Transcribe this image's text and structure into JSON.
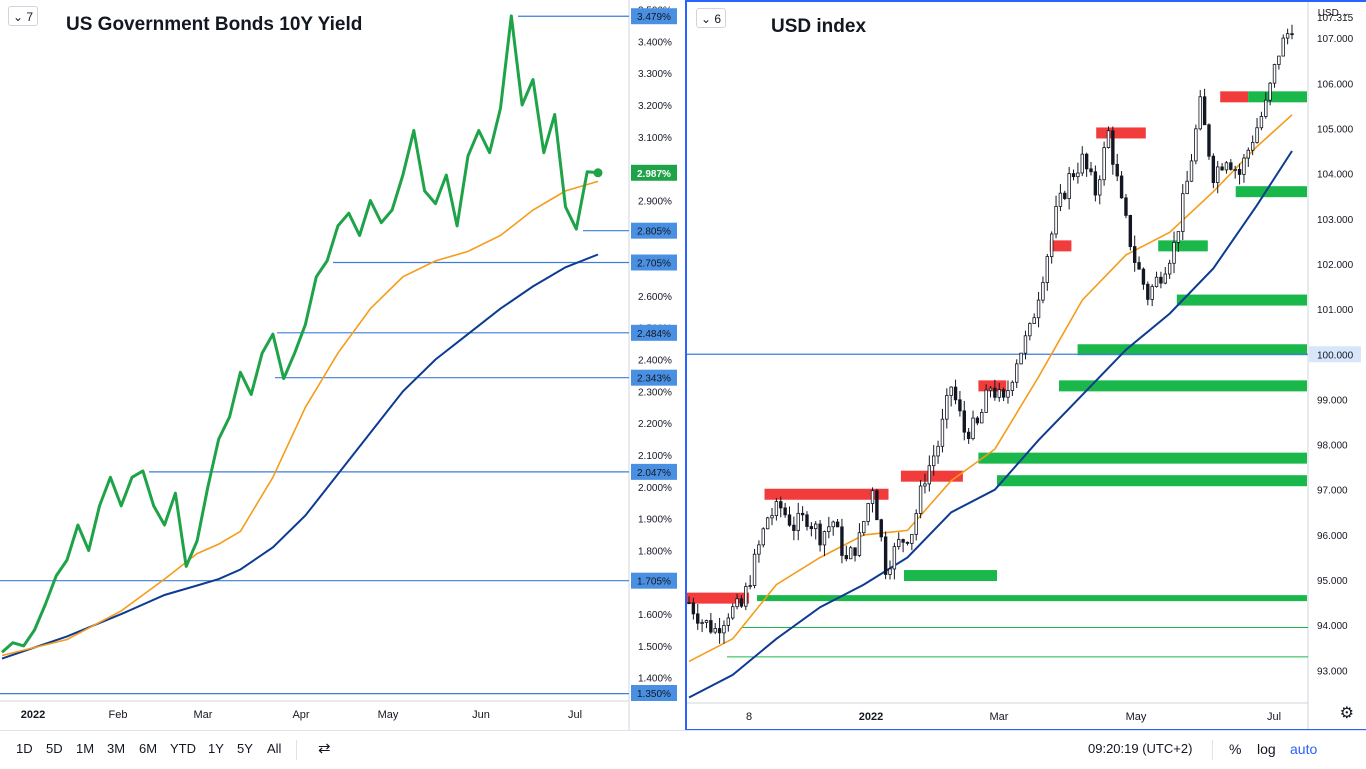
{
  "left_panel": {
    "badge": "7",
    "title": "US Government Bonds 10Y Yield",
    "price_axis_labels": [
      "3.500%",
      "3.400%",
      "3.300%",
      "3.200%",
      "3.100%",
      "2.900%",
      "2.700%",
      "2.600%",
      "2.500%",
      "2.400%",
      "2.300%",
      "2.200%",
      "2.100%",
      "2.000%",
      "1.900%",
      "1.800%",
      "1.600%",
      "1.500%",
      "1.400%",
      "1.350%"
    ],
    "level_tags": [
      "3.479%",
      "2.805%",
      "2.705%",
      "2.484%",
      "2.343%",
      "2.047%",
      "1.705%",
      "1.350%"
    ],
    "last_price": "2.987%",
    "time_labels": [
      "2022",
      "Feb",
      "Mar",
      "Apr",
      "May",
      "Jun",
      "Jul"
    ]
  },
  "right_panel": {
    "badge": "6",
    "title": "USD index",
    "currency": "USD",
    "price_axis_labels": [
      "107.315",
      "107.000",
      "106.000",
      "105.000",
      "104.000",
      "103.000",
      "102.000",
      "101.000",
      "100.000",
      "99.000",
      "98.000",
      "97.000",
      "96.000",
      "95.000",
      "94.000",
      "93.000"
    ],
    "level_tag": "100.000",
    "time_labels": [
      "8",
      "2022",
      "Mar",
      "May",
      "Jul"
    ]
  },
  "bottom_bar": {
    "timeframes": [
      "1D",
      "5D",
      "1M",
      "3M",
      "6M",
      "YTD",
      "1Y",
      "5Y",
      "All"
    ],
    "clock": "09:20:19 (UTC+2)",
    "percent": "%",
    "log": "log",
    "auto": "auto"
  },
  "colors": {
    "price_line": "#1fa349",
    "ma_fast": "#f59c1a",
    "ma_slow": "#0d3b94",
    "level_line": "#3d7fd6",
    "level_tag_bg": "#4a90e2",
    "resistance": "#f23b3b",
    "support": "#1ab84a",
    "frame": "#2962ff"
  },
  "chart_data": [
    {
      "type": "line",
      "title": "US Government Bonds 10Y Yield",
      "x_labels": [
        "2022",
        "Feb",
        "Mar",
        "Apr",
        "May",
        "Jun",
        "Jul"
      ],
      "ylim": [
        1.33,
        3.53
      ],
      "series": [
        {
          "values": [
            1.48,
            1.51,
            1.5,
            1.55,
            1.63,
            1.72,
            1.77,
            1.88,
            1.8,
            1.94,
            2.03,
            1.94,
            2.03,
            2.05,
            1.94,
            1.88,
            1.98,
            1.75,
            1.83,
            2.0,
            2.15,
            2.22,
            2.36,
            2.29,
            2.42,
            2.48,
            2.34,
            2.42,
            2.51,
            2.66,
            2.71,
            2.82,
            2.86,
            2.79,
            2.9,
            2.83,
            2.87,
            2.98,
            3.12,
            2.93,
            2.89,
            2.98,
            2.82,
            3.04,
            3.12,
            3.05,
            3.19,
            3.48,
            3.2,
            3.28,
            3.05,
            3.17,
            2.88,
            2.81,
            2.99,
            2.987
          ]
        }
      ],
      "x_range": [
        0,
        55
      ],
      "ma_fast": [
        [
          0,
          1.47
        ],
        [
          6,
          1.52
        ],
        [
          11,
          1.61
        ],
        [
          15,
          1.71
        ],
        [
          18,
          1.79
        ],
        [
          20,
          1.82
        ],
        [
          22,
          1.86
        ],
        [
          25,
          2.03
        ],
        [
          28,
          2.25
        ],
        [
          31,
          2.42
        ],
        [
          34,
          2.56
        ],
        [
          37,
          2.66
        ],
        [
          40,
          2.71
        ],
        [
          43,
          2.74
        ],
        [
          46,
          2.79
        ],
        [
          49,
          2.87
        ],
        [
          52,
          2.93
        ],
        [
          55,
          2.96
        ]
      ],
      "ma_slow": [
        [
          0,
          1.46
        ],
        [
          6,
          1.53
        ],
        [
          11,
          1.6
        ],
        [
          15,
          1.66
        ],
        [
          18,
          1.69
        ],
        [
          20,
          1.71
        ],
        [
          22,
          1.74
        ],
        [
          25,
          1.81
        ],
        [
          28,
          1.91
        ],
        [
          31,
          2.04
        ],
        [
          34,
          2.17
        ],
        [
          37,
          2.3
        ],
        [
          40,
          2.4
        ],
        [
          43,
          2.48
        ],
        [
          46,
          2.56
        ],
        [
          49,
          2.63
        ],
        [
          52,
          2.69
        ],
        [
          55,
          2.73
        ]
      ],
      "levels": [
        3.479,
        2.805,
        2.705,
        2.484,
        2.343,
        2.047,
        1.705,
        1.35
      ]
    },
    {
      "type": "candlestick",
      "title": "USD index",
      "x_labels": [
        "8",
        "2022",
        "Mar",
        "May",
        "Jul"
      ],
      "ylim": [
        92.3,
        107.8
      ],
      "last": 107.315,
      "close_path": [
        [
          0,
          94.5
        ],
        [
          3,
          94.1
        ],
        [
          6,
          93.9
        ],
        [
          9,
          94.3
        ],
        [
          12,
          94.4
        ],
        [
          15,
          95.4
        ],
        [
          18,
          96.4
        ],
        [
          21,
          96.6
        ],
        [
          24,
          96.2
        ],
        [
          27,
          96.4
        ],
        [
          30,
          96.0
        ],
        [
          33,
          96.3
        ],
        [
          36,
          95.4
        ],
        [
          39,
          95.9
        ],
        [
          42,
          97.1
        ],
        [
          45,
          95.3
        ],
        [
          48,
          95.8
        ],
        [
          51,
          96.1
        ],
        [
          54,
          97.3
        ],
        [
          57,
          98.0
        ],
        [
          60,
          99.3
        ],
        [
          63,
          98.3
        ],
        [
          66,
          98.4
        ],
        [
          69,
          99.3
        ],
        [
          72,
          98.9
        ],
        [
          75,
          99.9
        ],
        [
          78,
          100.5
        ],
        [
          81,
          101.8
        ],
        [
          84,
          103.1
        ],
        [
          87,
          103.9
        ],
        [
          90,
          104.3
        ],
        [
          93,
          103.6
        ],
        [
          96,
          104.9
        ],
        [
          99,
          103.3
        ],
        [
          102,
          102.1
        ],
        [
          105,
          101.3
        ],
        [
          108,
          101.8
        ],
        [
          111,
          102.4
        ],
        [
          114,
          103.8
        ],
        [
          117,
          105.5
        ],
        [
          120,
          104.0
        ],
        [
          123,
          104.4
        ],
        [
          126,
          104.0
        ],
        [
          129,
          104.8
        ],
        [
          132,
          105.5
        ],
        [
          135,
          106.7
        ],
        [
          138,
          107.3
        ]
      ],
      "ma_fast": [
        [
          0,
          93.2
        ],
        [
          10,
          93.7
        ],
        [
          20,
          94.9
        ],
        [
          30,
          95.5
        ],
        [
          40,
          96.0
        ],
        [
          50,
          96.1
        ],
        [
          60,
          97.2
        ],
        [
          70,
          97.9
        ],
        [
          80,
          99.5
        ],
        [
          90,
          101.2
        ],
        [
          100,
          102.2
        ],
        [
          110,
          102.7
        ],
        [
          120,
          103.6
        ],
        [
          130,
          104.6
        ],
        [
          138,
          105.3
        ]
      ],
      "ma_slow": [
        [
          0,
          92.4
        ],
        [
          10,
          92.9
        ],
        [
          20,
          93.7
        ],
        [
          30,
          94.4
        ],
        [
          40,
          94.9
        ],
        [
          50,
          95.5
        ],
        [
          60,
          96.5
        ],
        [
          70,
          97.0
        ],
        [
          80,
          98.1
        ],
        [
          90,
          99.1
        ],
        [
          100,
          100.1
        ],
        [
          110,
          100.9
        ],
        [
          120,
          101.9
        ],
        [
          130,
          103.3
        ],
        [
          138,
          104.5
        ]
      ],
      "resistance_zones": [
        [
          0,
          20,
          94.6
        ],
        [
          25,
          65,
          96.9
        ],
        [
          69,
          89,
          97.3
        ],
        [
          94,
          103,
          99.3
        ],
        [
          132,
          148,
          104.9
        ],
        [
          117,
          124,
          102.4
        ],
        [
          172,
          181,
          105.7
        ]
      ],
      "support_zones": [
        [
          70,
          100,
          95.1
        ],
        [
          100,
          200,
          97.2
        ],
        [
          94,
          200,
          97.7
        ],
        [
          120,
          200,
          99.3
        ],
        [
          126,
          200,
          100.1
        ],
        [
          152,
          168,
          102.4
        ],
        [
          158,
          200,
          101.2
        ],
        [
          177,
          200,
          103.6
        ],
        [
          181,
          200,
          105.7
        ]
      ],
      "horizontal_level": 100.0
    }
  ]
}
